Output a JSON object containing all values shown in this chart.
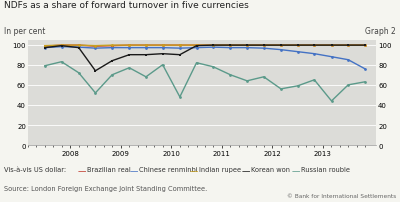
{
  "title": "NDFs as a share of forward turnover in five currencies",
  "ylabel_left": "In per cent",
  "ylabel_right": "Graph 2",
  "source": "Source: London Foreign Exchange Joint Standing Committee.",
  "copyright": "© Bank for International Settlements",
  "fig_bg": "#f5f5f0",
  "plot_bg": "#dcdcd8",
  "ylim": [
    0,
    105
  ],
  "yticks": [
    0,
    20,
    40,
    60,
    80,
    100
  ],
  "xlim": [
    2007.4,
    2014.05
  ],
  "x_major": [
    2008,
    2009,
    2010,
    2011,
    2012,
    2013
  ],
  "series": [
    {
      "name": "Brazilian real",
      "color": "#c0392b",
      "linewidth": 1.0,
      "marker": "o",
      "markersize": 2.0,
      "x": [
        2007.5,
        2007.83,
        2008.17,
        2008.5,
        2008.83,
        2009.17,
        2009.5,
        2009.83,
        2010.17,
        2010.5,
        2010.83,
        2011.17,
        2011.5,
        2011.83,
        2012.17,
        2012.5,
        2012.83,
        2013.17,
        2013.5,
        2013.83
      ],
      "y": [
        98.5,
        99.5,
        99.5,
        98.5,
        99.0,
        99.5,
        99.5,
        99.5,
        99.5,
        99.5,
        99.5,
        99.5,
        99.5,
        99.5,
        99.5,
        99.5,
        99.5,
        99.5,
        99.5,
        99.5
      ]
    },
    {
      "name": "Chinese renminbi",
      "color": "#4472c4",
      "linewidth": 1.0,
      "marker": "o",
      "markersize": 2.0,
      "x": [
        2007.5,
        2007.83,
        2008.17,
        2008.5,
        2008.83,
        2009.17,
        2009.5,
        2009.83,
        2010.17,
        2010.5,
        2010.83,
        2011.17,
        2011.5,
        2011.83,
        2012.17,
        2012.5,
        2012.83,
        2013.17,
        2013.5,
        2013.83
      ],
      "y": [
        97,
        98,
        97.5,
        96.5,
        97,
        97,
        97,
        97,
        96.5,
        97,
        97.5,
        97,
        97,
        96.5,
        95,
        93,
        91,
        88,
        85,
        76
      ]
    },
    {
      "name": "Indian rupee",
      "color": "#c8a020",
      "linewidth": 1.0,
      "marker": "o",
      "markersize": 2.0,
      "x": [
        2007.5,
        2007.83,
        2008.17,
        2008.5,
        2008.83,
        2009.17,
        2009.5,
        2009.83,
        2010.17,
        2010.5,
        2010.83,
        2011.17,
        2011.5,
        2011.83,
        2012.17,
        2012.5,
        2012.83,
        2013.17,
        2013.5,
        2013.83
      ],
      "y": [
        99,
        99.5,
        99.5,
        99.0,
        99.5,
        99.5,
        99.5,
        99.5,
        99.5,
        99.5,
        99.5,
        99.5,
        99.5,
        99.5,
        99.5,
        99.5,
        99.5,
        99.5,
        99.5,
        99.5
      ]
    },
    {
      "name": "Korean won",
      "color": "#1a1a1a",
      "linewidth": 1.0,
      "marker": "s",
      "markersize": 2.0,
      "x": [
        2007.5,
        2007.83,
        2008.17,
        2008.5,
        2008.83,
        2009.17,
        2009.5,
        2009.83,
        2010.17,
        2010.5,
        2010.83,
        2011.17,
        2011.5,
        2011.83,
        2012.17,
        2012.5,
        2012.83,
        2013.17,
        2013.5,
        2013.83
      ],
      "y": [
        97,
        99,
        97,
        74,
        84,
        90,
        90,
        91,
        90,
        99,
        99.5,
        99.5,
        99.5,
        99.5,
        99.5,
        99.5,
        99.5,
        99.5,
        99.5,
        99.5
      ]
    },
    {
      "name": "Russian rouble",
      "color": "#5b9a8a",
      "linewidth": 1.0,
      "marker": "o",
      "markersize": 2.0,
      "x": [
        2007.5,
        2007.83,
        2008.17,
        2008.5,
        2008.83,
        2009.17,
        2009.5,
        2009.83,
        2010.17,
        2010.5,
        2010.83,
        2011.17,
        2011.5,
        2011.83,
        2012.17,
        2012.5,
        2012.83,
        2013.17,
        2013.5,
        2013.83
      ],
      "y": [
        79,
        83,
        72,
        52,
        70,
        77,
        68,
        80,
        48,
        82,
        78,
        70,
        64,
        68,
        56,
        59,
        65,
        44,
        60,
        63
      ]
    }
  ]
}
